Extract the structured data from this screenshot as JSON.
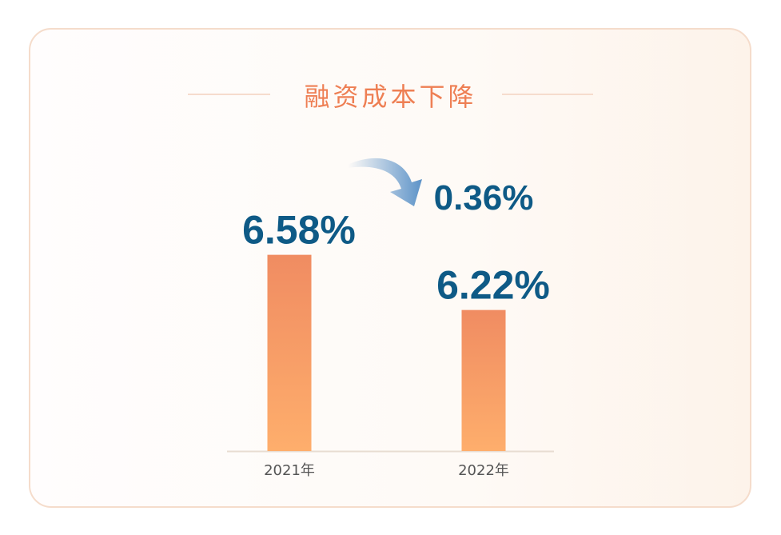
{
  "chart_data": {
    "type": "bar",
    "title": "融资成本下降",
    "categories": [
      "2021年",
      "2022年"
    ],
    "values": [
      6.58,
      6.22
    ],
    "data_labels": [
      "6.58%",
      "6.22%"
    ],
    "annotation": "0.36%",
    "ylim": [
      5.3,
      6.8
    ],
    "grid": false,
    "colors": {
      "bar_top": "#f08c62",
      "bar_bottom": "#feae6c",
      "label": "#0e5a86",
      "title": "#ee7f54",
      "arrow": "#5d93c8"
    }
  }
}
